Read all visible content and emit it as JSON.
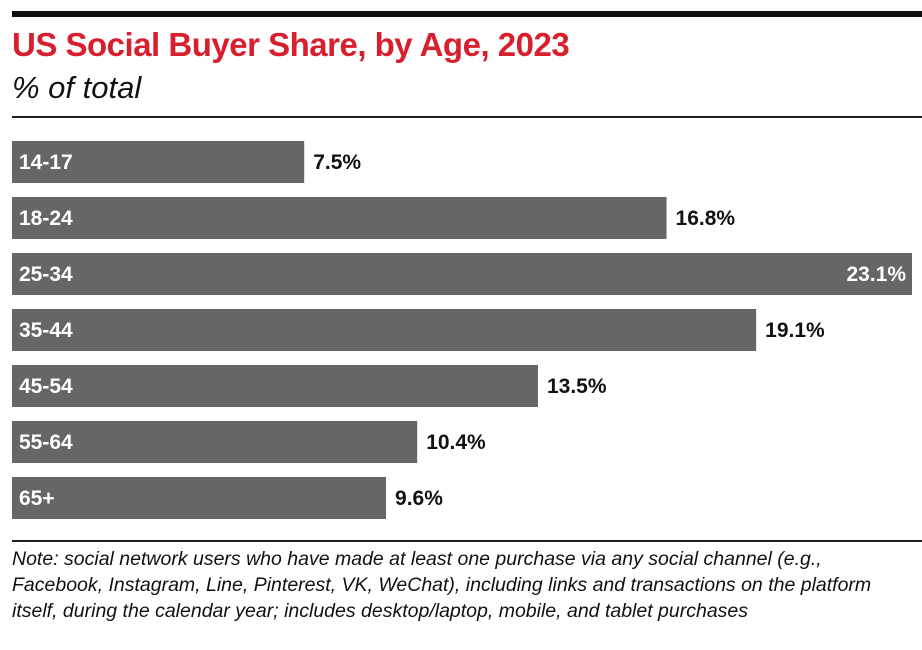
{
  "chart_data": {
    "type": "bar",
    "orientation": "horizontal",
    "title": "US Social Buyer Share, by Age, 2023",
    "subtitle": "% of total",
    "categories": [
      "14-17",
      "18-24",
      "25-34",
      "35-44",
      "45-54",
      "55-64",
      "65+"
    ],
    "values": [
      7.5,
      16.8,
      23.1,
      19.1,
      13.5,
      10.4,
      9.6
    ],
    "value_labels": [
      "7.5%",
      "16.8%",
      "23.1%",
      "19.1%",
      "13.5%",
      "10.4%",
      "9.6%"
    ],
    "xlim": [
      0,
      23.1
    ],
    "grid": false,
    "colors": {
      "bar": "#666666",
      "title": "#d71f2e",
      "label": "#ffffff",
      "value": "#111111"
    }
  },
  "note": "Note: social network users who have made at least one purchase via any social channel (e.g., Facebook, Instagram, Line, Pinterest, VK, WeChat), including links and transactions on the platform itself, during the calendar year; includes desktop/laptop, mobile, and tablet purchases"
}
